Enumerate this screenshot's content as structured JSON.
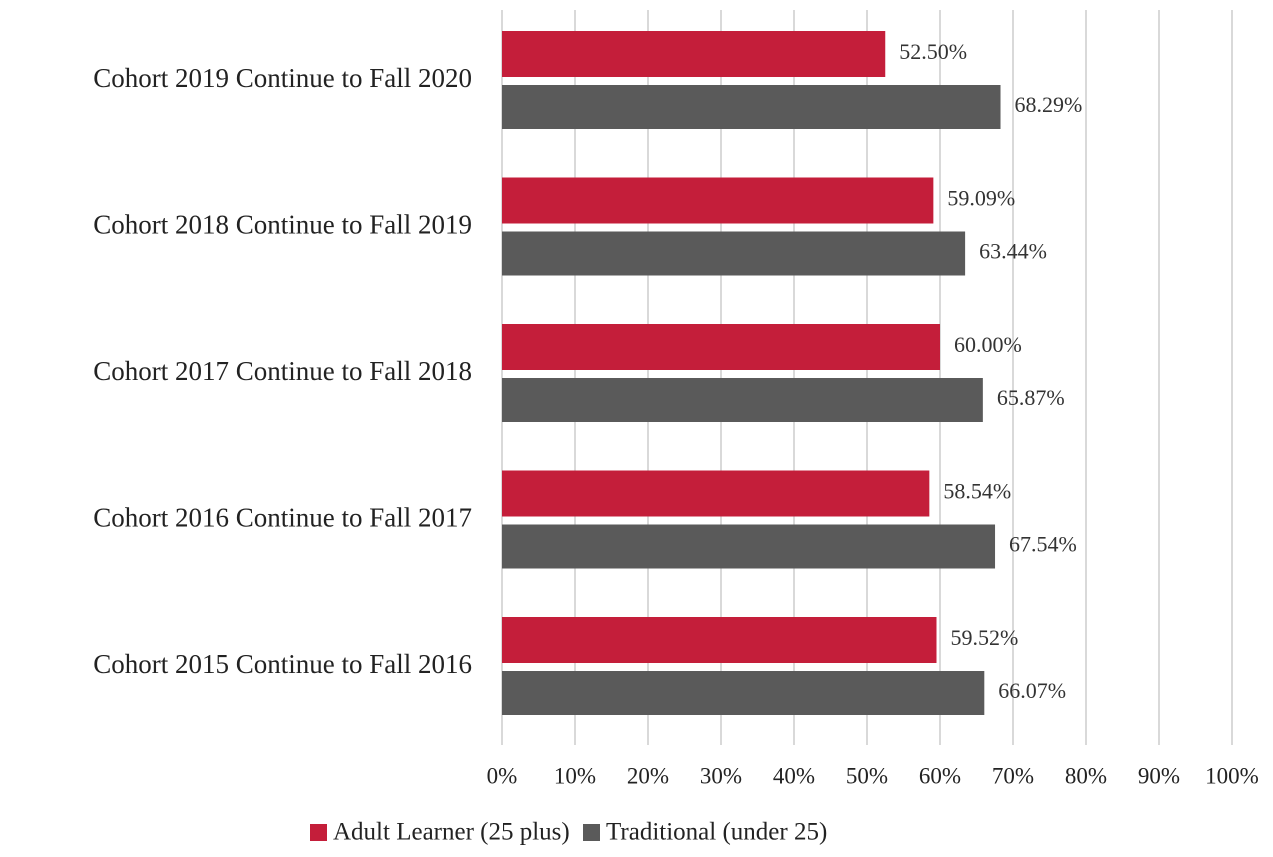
{
  "chart_data": {
    "type": "hbar",
    "categories": [
      "Cohort 2019 Continue to Fall 2020",
      "Cohort 2018 Continue to Fall 2019",
      "Cohort 2017 Continue to Fall 2018",
      "Cohort 2016 Continue to Fall 2017",
      "Cohort 2015 Continue to Fall 2016"
    ],
    "series": [
      {
        "name": "Adult Learner (25 plus)",
        "color": "#c41e3a",
        "values": [
          52.5,
          59.09,
          60,
          58.54,
          59.52
        ],
        "value_labels": [
          "52.50%",
          "59.09%",
          "60.00%",
          "58.54%",
          "59.52%"
        ]
      },
      {
        "name": "Traditional (under 25)",
        "color": "#5a5a5a",
        "values": [
          68.29,
          63.44,
          65.87,
          67.54,
          66.07
        ],
        "value_labels": [
          "68.29%",
          "63.44%",
          "65.87%",
          "67.54%",
          "66.07%"
        ]
      }
    ],
    "xlim": [
      0,
      100
    ],
    "xticks": [
      {
        "value": 0,
        "label": "0%"
      },
      {
        "value": 10,
        "label": "10%"
      },
      {
        "value": 20,
        "label": "20%"
      },
      {
        "value": 30,
        "label": "30%"
      },
      {
        "value": 40,
        "label": "40%"
      },
      {
        "value": 50,
        "label": "50%"
      },
      {
        "value": 60,
        "label": "60%"
      },
      {
        "value": 70,
        "label": "70%"
      },
      {
        "value": 80,
        "label": "80%"
      },
      {
        "value": 90,
        "label": "90%"
      },
      {
        "value": 100,
        "label": "100%"
      }
    ],
    "grid": true,
    "legend": "bottom"
  }
}
